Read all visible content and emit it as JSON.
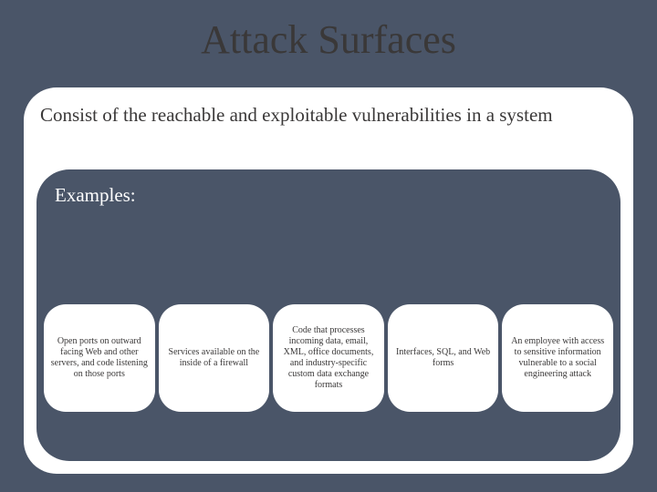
{
  "type": "infographic",
  "background_color": "#4a5568",
  "title": {
    "text": "Attack Surfaces",
    "fontsize": 44,
    "color": "#3a3838",
    "font_family": "Garamond"
  },
  "main_panel": {
    "background_color": "#ffffff",
    "border_radius": 36,
    "definition": {
      "text": "Consist of the reachable and exploitable vulnerabilities in a system",
      "fontsize": 21,
      "color": "#3a3838"
    }
  },
  "examples_panel": {
    "background_color": "#4a5568",
    "border_radius": 36,
    "label": {
      "text": "Examples:",
      "fontsize": 21,
      "color": "#ffffff"
    },
    "cards": [
      {
        "text": "Open ports on outward facing Web and other servers, and code listening on those ports"
      },
      {
        "text": "Services available on the inside of a firewall"
      },
      {
        "text": "Code that processes incoming data, email, XML, office documents, and industry-specific custom data exchange formats"
      },
      {
        "text": "Interfaces, SQL, and Web forms"
      },
      {
        "text": "An employee with access to sensitive information vulnerable to a social engineering attack"
      }
    ],
    "card_style": {
      "background_color": "#ffffff",
      "border_radius": 24,
      "fontsize": 10,
      "text_color": "#3a3838"
    }
  }
}
